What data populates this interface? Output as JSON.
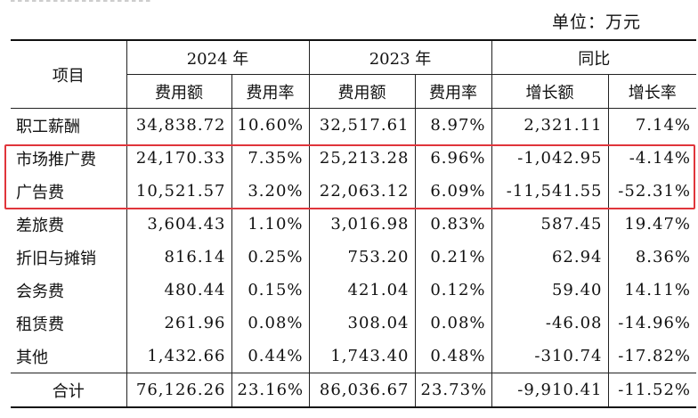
{
  "unit_label": "单位：万元",
  "table": {
    "item_header": "项目",
    "year_2024": "2024 年",
    "year_2023": "2023 年",
    "yoy": "同比",
    "sub_amount_2024": "费用额",
    "sub_rate_2024": "费用率",
    "sub_amount_2023": "费用额",
    "sub_rate_2023": "费用率",
    "sub_increase": "增长额",
    "sub_growth": "增长率",
    "rows": [
      {
        "item": "职工薪酬",
        "amt2024": "34,838.72",
        "rate2024": "10.60%",
        "amt2023": "32,517.61",
        "rate2023": "8.97%",
        "increase": "2,321.11",
        "growth": "7.14%"
      },
      {
        "item": "市场推广费",
        "amt2024": "24,170.33",
        "rate2024": "7.35%",
        "amt2023": "25,213.28",
        "rate2023": "6.96%",
        "increase": "-1,042.95",
        "growth": "-4.14%"
      },
      {
        "item": "广告费",
        "amt2024": "10,521.57",
        "rate2024": "3.20%",
        "amt2023": "22,063.12",
        "rate2023": "6.09%",
        "increase": "-11,541.55",
        "growth": "-52.31%"
      },
      {
        "item": "差旅费",
        "amt2024": "3,604.43",
        "rate2024": "1.10%",
        "amt2023": "3,016.98",
        "rate2023": "0.83%",
        "increase": "587.45",
        "growth": "19.47%"
      },
      {
        "item": "折旧与摊销",
        "amt2024": "816.14",
        "rate2024": "0.25%",
        "amt2023": "753.20",
        "rate2023": "0.21%",
        "increase": "62.94",
        "growth": "8.36%"
      },
      {
        "item": "会务费",
        "amt2024": "480.44",
        "rate2024": "0.15%",
        "amt2023": "421.04",
        "rate2023": "0.12%",
        "increase": "59.40",
        "growth": "14.11%"
      },
      {
        "item": "租赁费",
        "amt2024": "261.96",
        "rate2024": "0.08%",
        "amt2023": "308.04",
        "rate2023": "0.08%",
        "increase": "-46.08",
        "growth": "-14.96%"
      },
      {
        "item": "其他",
        "amt2024": "1,432.66",
        "rate2024": "0.44%",
        "amt2023": "1,743.40",
        "rate2023": "0.48%",
        "increase": "-310.74",
        "growth": "-17.82%"
      },
      {
        "item": "合计",
        "amt2024": "76,126.26",
        "rate2024": "23.16%",
        "amt2023": "86,036.67",
        "rate2023": "23.73%",
        "increase": "-9,910.41",
        "growth": "-11.52%"
      }
    ]
  },
  "highlight_color": "#e0353b"
}
